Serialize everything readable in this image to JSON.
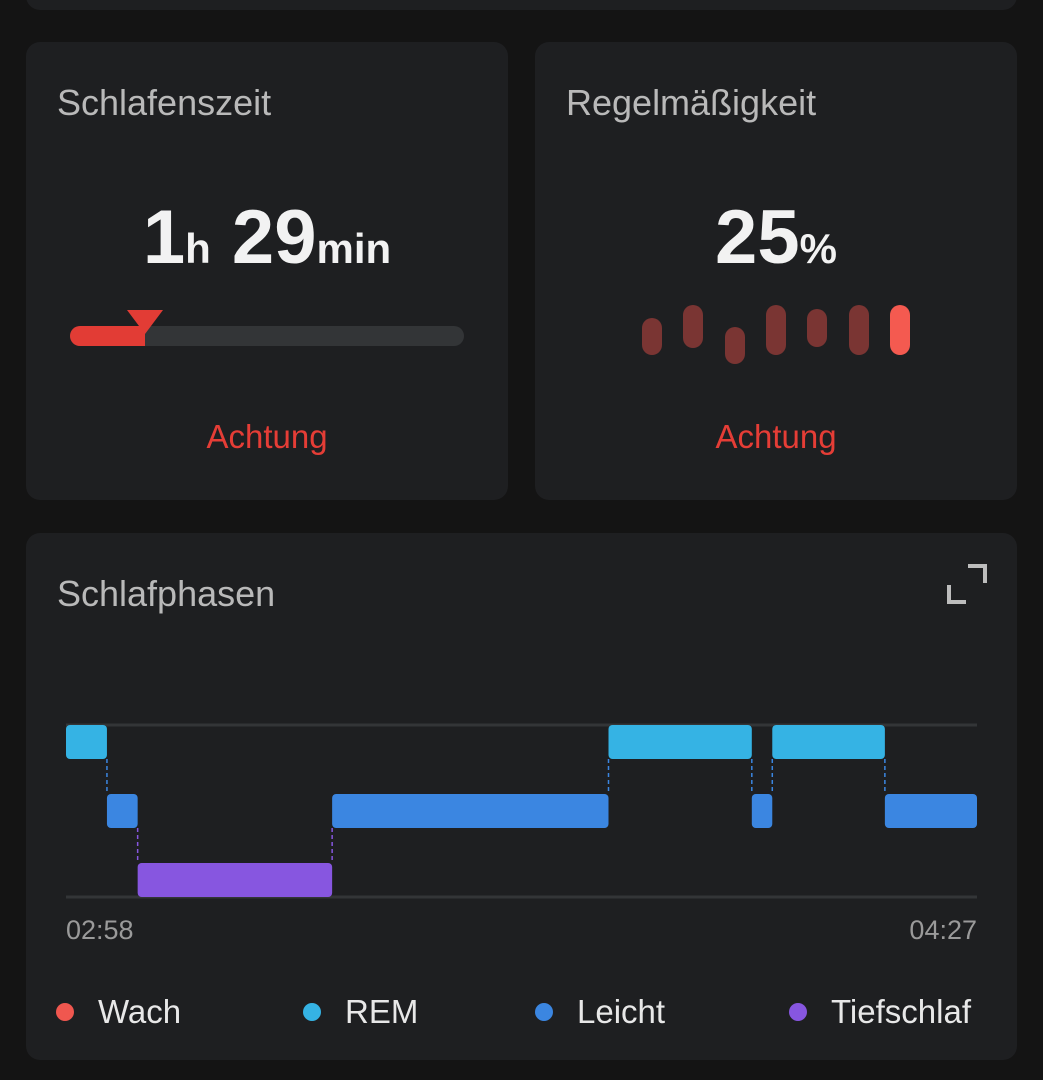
{
  "sleep_time": {
    "title": "Schlafenszeit",
    "hours": "1",
    "hours_unit": "h",
    "minutes": "29",
    "minutes_unit": "min",
    "progress_percent": 19,
    "status": "Achtung"
  },
  "regularity": {
    "title": "Regelmäßigkeit",
    "value": "25",
    "unit": "%",
    "status": "Achtung"
  },
  "phases": {
    "title": "Schlafphasen",
    "start_label": "02:58",
    "end_label": "04:27",
    "legend": [
      {
        "label": "Wach",
        "color": "#f0574f"
      },
      {
        "label": "REM",
        "color": "#35b3e4"
      },
      {
        "label": "Leicht",
        "color": "#3b86e1"
      },
      {
        "label": "Tiefschlaf",
        "color": "#8756e0"
      }
    ]
  },
  "chart_data": {
    "type": "timeline",
    "x_range_minutes": [
      0,
      89
    ],
    "levels": [
      "REM",
      "Leicht",
      "Tiefschlaf"
    ],
    "segments": [
      {
        "stage": "REM",
        "start": "02:58",
        "end": "03:02"
      },
      {
        "stage": "Leicht",
        "start": "03:02",
        "end": "03:05"
      },
      {
        "stage": "Tiefschlaf",
        "start": "03:05",
        "end": "03:24"
      },
      {
        "stage": "Leicht",
        "start": "03:24",
        "end": "03:51"
      },
      {
        "stage": "REM",
        "start": "03:51",
        "end": "04:05"
      },
      {
        "stage": "Leicht",
        "start": "04:05",
        "end": "04:07"
      },
      {
        "stage": "REM",
        "start": "04:07",
        "end": "04:18"
      },
      {
        "stage": "Leicht",
        "start": "04:18",
        "end": "04:27"
      }
    ]
  }
}
